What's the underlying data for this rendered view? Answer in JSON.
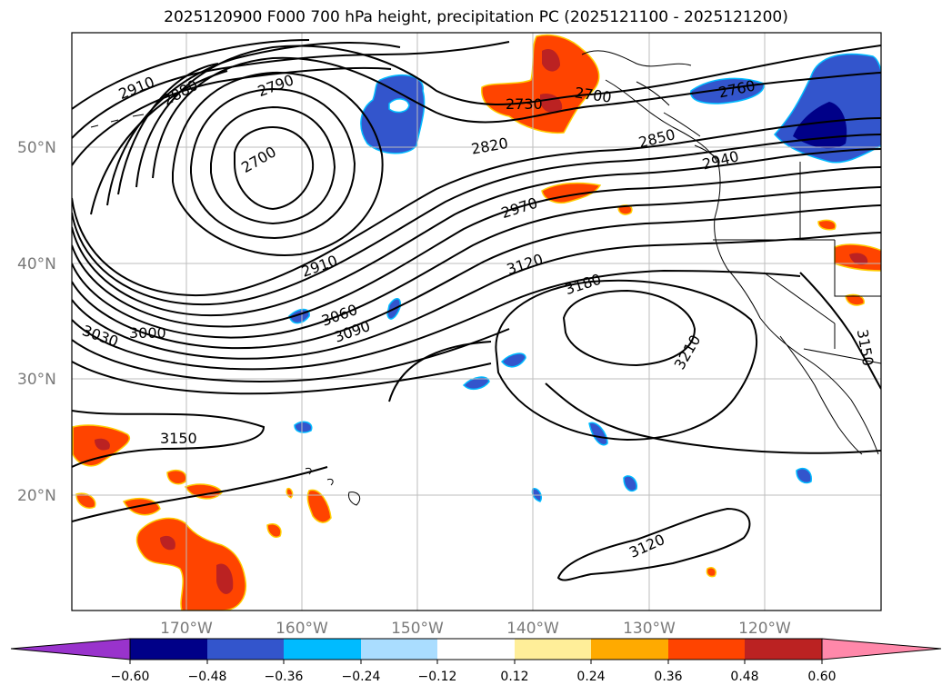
{
  "title": "2025120900 F000 700 hPa height, precipitation PC (2025121100 - 2025121200)",
  "map": {
    "lat_labels": [
      "50°N",
      "40°N",
      "30°N",
      "20°N"
    ],
    "lon_labels": [
      "170°W",
      "160°W",
      "150°W",
      "140°W",
      "130°W",
      "120°W"
    ],
    "contour_labels": [
      "2910",
      "2880",
      "2790",
      "2700",
      "2730",
      "2700",
      "2760",
      "2820",
      "2850",
      "2940",
      "2970",
      "2910",
      "3120",
      "3180",
      "3060",
      "3090",
      "3000",
      "3030",
      "3210",
      "3150",
      "3150",
      "3120"
    ]
  },
  "colorbar": {
    "ticks": [
      "−0.60",
      "−0.48",
      "−0.36",
      "−0.24",
      "−0.12",
      "0.12",
      "0.24",
      "0.36",
      "0.48",
      "0.60"
    ],
    "colors": [
      "#9933cc",
      "#000088",
      "#3355cc",
      "#00bbff",
      "#aaddff",
      "#ffffff",
      "#ffee99",
      "#ffaa00",
      "#ff4400",
      "#bb2222",
      "#ff88aa"
    ]
  }
}
